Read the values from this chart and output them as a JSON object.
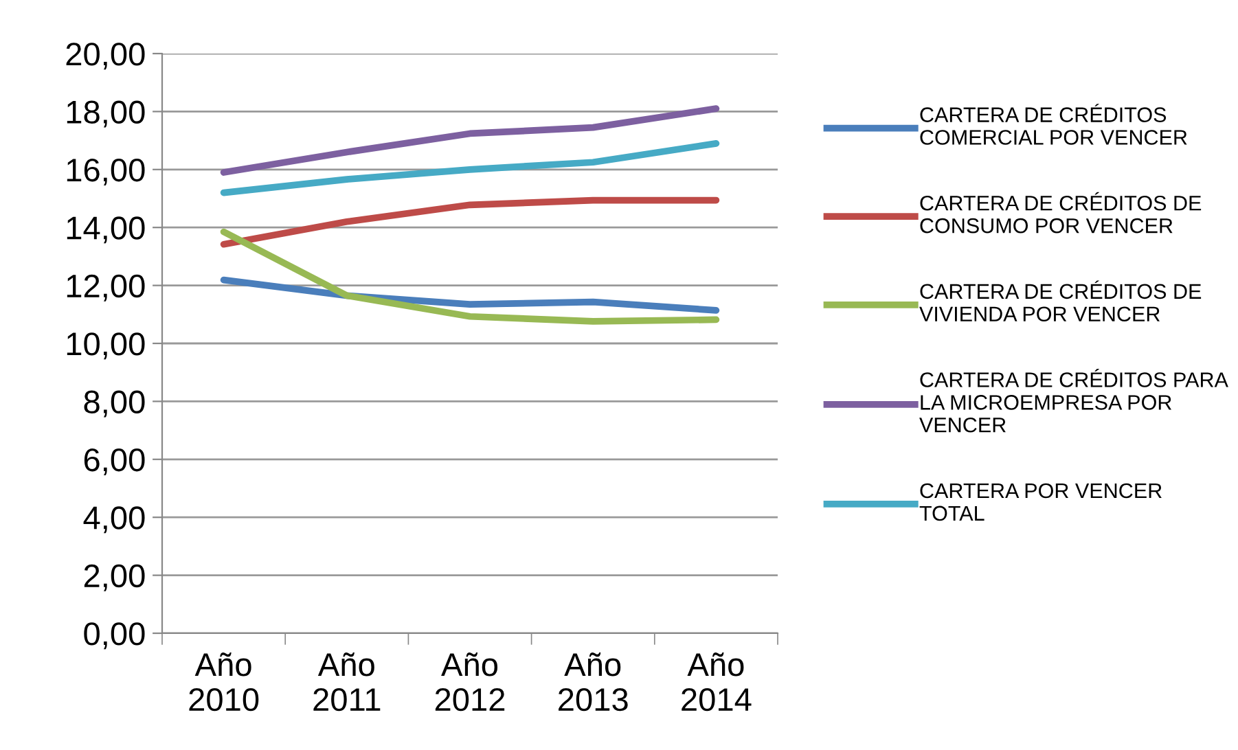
{
  "chart_data": {
    "type": "line",
    "categories": [
      "Año\n2010",
      "Año\n2011",
      "Año\n2012",
      "Año\n2013",
      "Año\n2014"
    ],
    "series": [
      {
        "name": "CARTERA DE CRÉDITOS\nCOMERCIAL POR VENCER",
        "color": "#4a7ebb",
        "values": [
          12.19,
          11.65,
          11.35,
          11.43,
          11.14
        ]
      },
      {
        "name": "CARTERA DE CRÉDITOS DE\nCONSUMO POR VENCER",
        "color": "#be4b48",
        "values": [
          13.42,
          14.2,
          14.78,
          14.94,
          14.94
        ]
      },
      {
        "name": "CARTERA DE CRÉDITOS DE\nVIVIENDA POR VENCER",
        "color": "#98b954",
        "values": [
          13.85,
          11.65,
          10.93,
          10.76,
          10.82
        ]
      },
      {
        "name": "CARTERA DE CRÉDITOS PARA\nLA MICROEMPRESA POR\nVENCER",
        "color": "#7d60a0",
        "values": [
          15.9,
          16.6,
          17.24,
          17.45,
          18.1
        ]
      },
      {
        "name": "CARTERA POR VENCER\nTOTAL",
        "color": "#46aac5",
        "values": [
          15.2,
          15.66,
          16.0,
          16.25,
          16.9
        ]
      }
    ],
    "ylim": [
      0,
      20
    ],
    "yticks": [
      {
        "value": 0,
        "label": "0,00"
      },
      {
        "value": 2,
        "label": "2,00"
      },
      {
        "value": 4,
        "label": "4,00"
      },
      {
        "value": 6,
        "label": "6,00"
      },
      {
        "value": 8,
        "label": "8,00"
      },
      {
        "value": 10,
        "label": "10,00"
      },
      {
        "value": 12,
        "label": "12,00"
      },
      {
        "value": 14,
        "label": "14,00"
      },
      {
        "value": 16,
        "label": "16,00"
      },
      {
        "value": 18,
        "label": "18,00"
      },
      {
        "value": 20,
        "label": "20,00"
      }
    ],
    "grid": "y",
    "legend": "right",
    "marker": "none",
    "line_style": "solid"
  }
}
